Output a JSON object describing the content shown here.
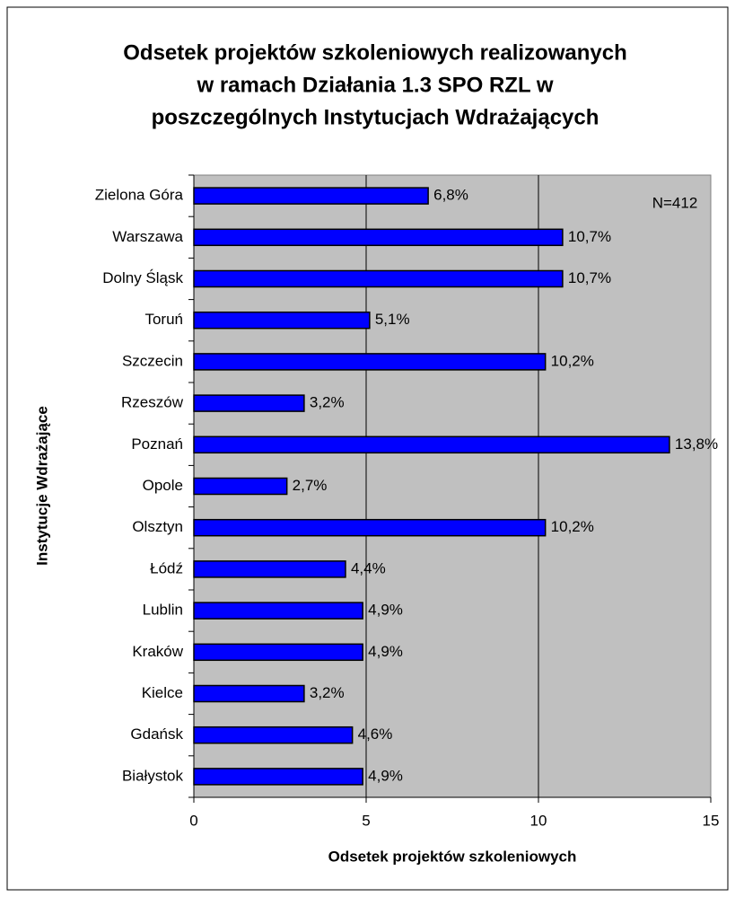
{
  "chart_data": {
    "type": "barh",
    "title": [
      "Odsetek projektów szkoleniowych realizowanych",
      "w ramach Działania 1.3 SPO RZL w",
      "poszczególnych Instytucjach Wdrażających"
    ],
    "x_label": "Odsetek projektów szkoleniowych",
    "y_label": "Instytucje Wdrażające",
    "annotation": "N=412",
    "categories": [
      "Zielona Góra",
      "Warszawa",
      "Dolny Śląsk",
      "Toruń",
      "Szczecin",
      "Rzeszów",
      "Poznań",
      "Opole",
      "Olsztyn",
      "Łódź",
      "Lublin",
      "Kraków",
      "Kielce",
      "Gdańsk",
      "Białystok"
    ],
    "values": [
      6.8,
      10.7,
      10.7,
      5.1,
      10.2,
      3.2,
      13.8,
      2.7,
      10.2,
      4.4,
      4.9,
      4.9,
      3.2,
      4.6,
      4.9
    ],
    "value_labels": [
      "6,8%",
      "10,7%",
      "10,7%",
      "5,1%",
      "10,2%",
      "3,2%",
      "13,8%",
      "2,7%",
      "10,2%",
      "4,4%",
      "4,9%",
      "4,9%",
      "3,2%",
      "4,6%",
      "4,9%"
    ],
    "color": "#0000ff",
    "xlim": [
      0,
      15
    ],
    "xticks": [
      0,
      5,
      10,
      15
    ],
    "grid": true
  }
}
